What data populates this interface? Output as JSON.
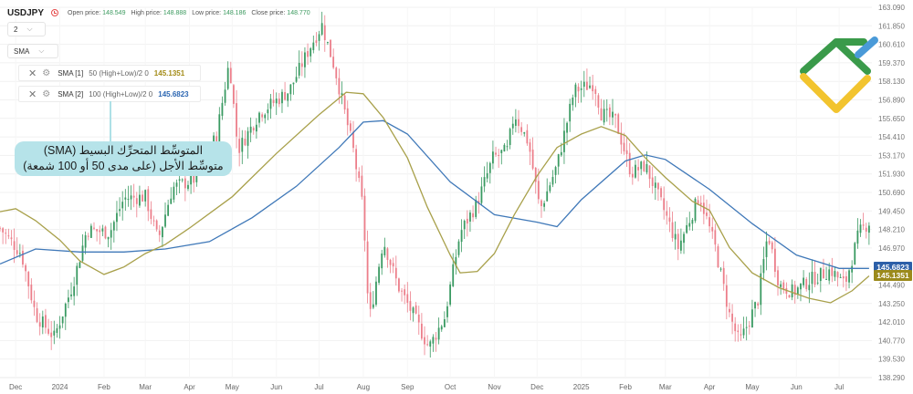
{
  "header": {
    "symbol": "USDJPY",
    "open_label": "Open price:",
    "open_value": "148.549",
    "high_label": "High price:",
    "high_value": "148.888",
    "low_label": "Low price:",
    "low_value": "148.186",
    "close_label": "Close price:",
    "close_value": "148.770"
  },
  "controls": {
    "interval": "2",
    "indicator": "SMA"
  },
  "indicators": [
    {
      "name": "SMA [1]",
      "params": "50 (High+Low)/2 0",
      "value": "145.1351"
    },
    {
      "name": "SMA [2]",
      "params": "100 (High+Low)/2 0",
      "value": "145.6823"
    }
  ],
  "annotation": {
    "line1": "المتوسِّط المتحرِّك البسيط (SMA)",
    "line2": "متوسِّط الأجل (على مدى 50 أو 100 شمعة)"
  },
  "icons": {
    "close": "close-icon",
    "settings": "gear-icon",
    "chevron": "chevron-down-icon",
    "clock": "clock-icon",
    "logo": "brand-logo"
  },
  "chart_data": {
    "type": "candlestick",
    "colors": {
      "up": "#3a9a62",
      "down": "#ec7e8a",
      "sma50": "#a8a04a",
      "sma100": "#3f78b8",
      "sma50_badge": "#9b8a1c",
      "sma100_badge": "#2c5fa8"
    },
    "y_ticks": [
      "163.090",
      "161.850",
      "160.610",
      "159.370",
      "158.130",
      "156.890",
      "155.650",
      "154.410",
      "153.170",
      "151.930",
      "150.690",
      "149.450",
      "148.210",
      "146.970",
      "145.730",
      "144.490",
      "143.250",
      "142.010",
      "140.770",
      "139.530",
      "138.290"
    ],
    "x_ticks": [
      "Dec",
      "2024",
      "Feb",
      "Mar",
      "Apr",
      "May",
      "Jun",
      "Jul",
      "Aug",
      "Sep",
      "Oct",
      "Nov",
      "Dec",
      "2025",
      "Feb",
      "Mar",
      "Apr",
      "May",
      "Jun",
      "Jul"
    ],
    "ylim": [
      138.29,
      163.09
    ],
    "price_path": [
      [
        "2023-11-20",
        148.3
      ],
      [
        "2023-12-05",
        146.6
      ],
      [
        "2023-12-15",
        142.5
      ],
      [
        "2023-12-28",
        141.0
      ],
      [
        "2024-01-10",
        144.5
      ],
      [
        "2024-01-20",
        148.2
      ],
      [
        "2024-02-05",
        148.0
      ],
      [
        "2024-02-15",
        150.3
      ],
      [
        "2024-03-01",
        150.4
      ],
      [
        "2024-03-10",
        147.5
      ],
      [
        "2024-03-20",
        151.0
      ],
      [
        "2024-04-05",
        151.6
      ],
      [
        "2024-04-20",
        154.5
      ],
      [
        "2024-04-29",
        159.5
      ],
      [
        "2024-05-05",
        153.5
      ],
      [
        "2024-05-20",
        156.0
      ],
      [
        "2024-06-10",
        157.5
      ],
      [
        "2024-06-25",
        160.5
      ],
      [
        "2024-07-03",
        161.9
      ],
      [
        "2024-07-12",
        159.0
      ],
      [
        "2024-07-25",
        153.5
      ],
      [
        "2024-08-01",
        149.5
      ],
      [
        "2024-08-05",
        142.0
      ],
      [
        "2024-08-15",
        147.5
      ],
      [
        "2024-08-25",
        144.5
      ],
      [
        "2024-09-05",
        142.5
      ],
      [
        "2024-09-16",
        140.3
      ],
      [
        "2024-09-27",
        142.3
      ],
      [
        "2024-10-08",
        148.0
      ],
      [
        "2024-10-20",
        150.0
      ],
      [
        "2024-10-31",
        153.0
      ],
      [
        "2024-11-10",
        153.5
      ],
      [
        "2024-11-15",
        156.0
      ],
      [
        "2024-11-25",
        154.0
      ],
      [
        "2024-12-03",
        149.5
      ],
      [
        "2024-12-15",
        152.5
      ],
      [
        "2024-12-27",
        157.5
      ],
      [
        "2025-01-10",
        158.0
      ],
      [
        "2025-01-15",
        156.0
      ],
      [
        "2025-01-25",
        155.5
      ],
      [
        "2025-02-05",
        152.0
      ],
      [
        "2025-02-15",
        152.5
      ],
      [
        "2025-02-28",
        149.5
      ],
      [
        "2025-03-10",
        147.0
      ],
      [
        "2025-03-25",
        150.5
      ],
      [
        "2025-04-05",
        147.0
      ],
      [
        "2025-04-15",
        142.5
      ],
      [
        "2025-04-22",
        140.6
      ],
      [
        "2025-05-05",
        143.5
      ],
      [
        "2025-05-12",
        148.0
      ],
      [
        "2025-05-20",
        144.5
      ],
      [
        "2025-05-30",
        144.0
      ],
      [
        "2025-06-10",
        144.8
      ],
      [
        "2025-06-25",
        145.5
      ],
      [
        "2025-07-05",
        144.5
      ],
      [
        "2025-07-15",
        148.0
      ],
      [
        "2025-07-22",
        148.7
      ]
    ],
    "sma50": [
      [
        "2023-11-20",
        149.4
      ],
      [
        "2023-12-01",
        149.6
      ],
      [
        "2023-12-15",
        148.8
      ],
      [
        "2024-01-01",
        147.5
      ],
      [
        "2024-01-15",
        146.1
      ],
      [
        "2024-02-01",
        145.2
      ],
      [
        "2024-02-15",
        145.7
      ],
      [
        "2024-03-01",
        146.6
      ],
      [
        "2024-03-15",
        147.2
      ],
      [
        "2024-04-01",
        148.3
      ],
      [
        "2024-05-01",
        150.4
      ],
      [
        "2024-06-01",
        153.3
      ],
      [
        "2024-07-01",
        155.9
      ],
      [
        "2024-07-20",
        157.4
      ],
      [
        "2024-08-01",
        157.3
      ],
      [
        "2024-08-15",
        155.7
      ],
      [
        "2024-09-01",
        153.0
      ],
      [
        "2024-09-15",
        149.7
      ],
      [
        "2024-10-01",
        146.5
      ],
      [
        "2024-10-08",
        145.3
      ],
      [
        "2024-10-20",
        145.4
      ],
      [
        "2024-11-01",
        146.6
      ],
      [
        "2024-11-15",
        149.2
      ],
      [
        "2024-12-01",
        151.8
      ],
      [
        "2024-12-15",
        153.7
      ],
      [
        "2025-01-01",
        154.6
      ],
      [
        "2025-01-15",
        155.1
      ],
      [
        "2025-02-01",
        154.5
      ],
      [
        "2025-02-15",
        153.0
      ],
      [
        "2025-03-01",
        151.7
      ],
      [
        "2025-03-20",
        150.1
      ],
      [
        "2025-04-01",
        149.5
      ],
      [
        "2025-04-15",
        147.0
      ],
      [
        "2025-05-01",
        145.3
      ],
      [
        "2025-05-20",
        144.3
      ],
      [
        "2025-06-10",
        143.6
      ],
      [
        "2025-06-25",
        143.3
      ],
      [
        "2025-07-10",
        144.1
      ],
      [
        "2025-07-22",
        145.1
      ]
    ],
    "sma100": [
      [
        "2023-11-20",
        145.9
      ],
      [
        "2023-12-15",
        146.9
      ],
      [
        "2024-01-15",
        146.7
      ],
      [
        "2024-02-15",
        146.7
      ],
      [
        "2024-03-15",
        146.9
      ],
      [
        "2024-04-15",
        147.4
      ],
      [
        "2024-05-15",
        149.0
      ],
      [
        "2024-06-15",
        151.1
      ],
      [
        "2024-07-15",
        153.7
      ],
      [
        "2024-08-01",
        155.4
      ],
      [
        "2024-08-15",
        155.5
      ],
      [
        "2024-09-01",
        154.6
      ],
      [
        "2024-10-01",
        151.4
      ],
      [
        "2024-11-01",
        149.2
      ],
      [
        "2024-12-01",
        148.7
      ],
      [
        "2024-12-15",
        148.4
      ],
      [
        "2025-01-01",
        150.2
      ],
      [
        "2025-02-01",
        152.8
      ],
      [
        "2025-02-15",
        153.2
      ],
      [
        "2025-03-01",
        152.9
      ],
      [
        "2025-04-01",
        150.9
      ],
      [
        "2025-05-01",
        148.6
      ],
      [
        "2025-06-01",
        146.5
      ],
      [
        "2025-07-01",
        145.6
      ],
      [
        "2025-07-22",
        145.6
      ]
    ]
  }
}
